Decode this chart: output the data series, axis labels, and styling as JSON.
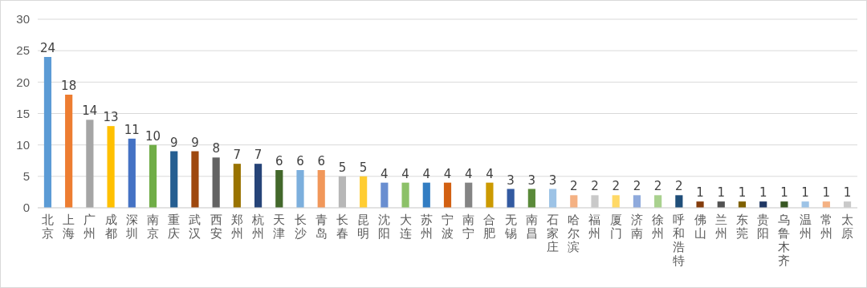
{
  "chart_data": {
    "type": "bar",
    "categories": [
      "北京",
      "上海",
      "广州",
      "成都",
      "深圳",
      "南京",
      "重庆",
      "武汉",
      "西安",
      "郑州",
      "杭州",
      "天津",
      "长沙",
      "青岛",
      "长春",
      "昆明",
      "沈阳",
      "大连",
      "苏州",
      "宁波",
      "南宁",
      "合肥",
      "无锡",
      "南昌",
      "石家庄",
      "哈尔滨",
      "福州",
      "厦门",
      "济南",
      "徐州",
      "呼和浩特",
      "佛山",
      "兰州",
      "东莞",
      "贵阳",
      "乌鲁木齐",
      "温州",
      "常州",
      "太原"
    ],
    "values": [
      24,
      18,
      14,
      13,
      11,
      10,
      9,
      9,
      8,
      7,
      7,
      6,
      6,
      6,
      5,
      5,
      4,
      4,
      4,
      4,
      4,
      4,
      3,
      3,
      3,
      2,
      2,
      2,
      2,
      2,
      2,
      1,
      1,
      1,
      1,
      1,
      1,
      1,
      1
    ],
    "colors": [
      "#5b9bd5",
      "#ed7d31",
      "#a5a5a5",
      "#ffc000",
      "#4472c4",
      "#70ad47",
      "#255e91",
      "#9e480e",
      "#636363",
      "#997300",
      "#264478",
      "#43682b",
      "#7cafdd",
      "#f1975a",
      "#b7b7b7",
      "#ffcd33",
      "#698ed0",
      "#8cc168",
      "#327dc2",
      "#d26012",
      "#848484",
      "#cc9a00",
      "#335aa1",
      "#5a8a39",
      "#9dc3e6",
      "#f4b183",
      "#c9c9c9",
      "#ffd966",
      "#8faadc",
      "#a9d18e",
      "#1f4e79",
      "#843c0c",
      "#525252",
      "#7f6000",
      "#203864",
      "#385723",
      "#9dc3e6",
      "#f4b183",
      "#c9c9c9"
    ],
    "ylim": [
      0,
      30
    ],
    "yticks": [
      0,
      5,
      10,
      15,
      20,
      25,
      30
    ],
    "grid": "y",
    "data_labels": true
  }
}
